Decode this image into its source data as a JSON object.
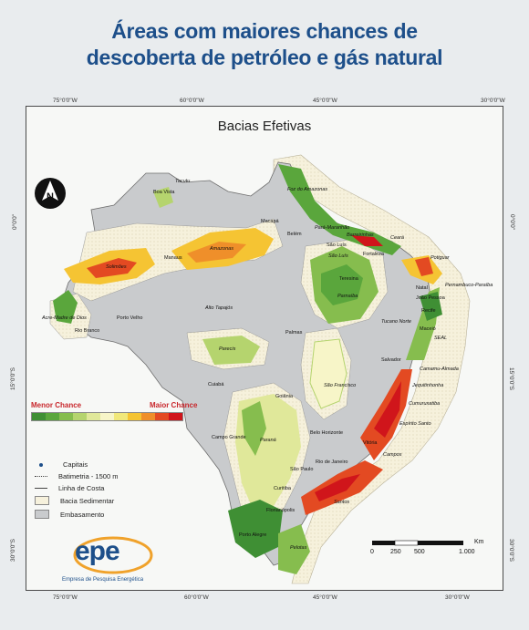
{
  "title_line1": "Áreas com maiores chances de",
  "title_line2": "descoberta de petróleo e gás natural",
  "map_title": "Bacias Efetivas",
  "lon_ticks": [
    "75°0'0\"W",
    "60°0'0\"W",
    "45°0'0\"W",
    "30°0'0\"W"
  ],
  "lat_ticks": [
    "0°0'0\"",
    "15°0'0\"S",
    "30°0'0\"S"
  ],
  "legend": {
    "low_label": "Menor Chance",
    "high_label": "Maior Chance",
    "colors": [
      "#3f8f34",
      "#5aa63c",
      "#86bd4e",
      "#b5d46e",
      "#e0e89a",
      "#f7f5c8",
      "#f1e87a",
      "#f5c433",
      "#ef8f2a",
      "#e34a22",
      "#d0151b"
    ],
    "items": [
      {
        "label": "Capitais",
        "icon": "capital-dot-icon"
      },
      {
        "label": "Batimetria - 1500 m",
        "icon": "dotted-line-icon"
      },
      {
        "label": "Linha de Costa",
        "icon": "line-icon"
      },
      {
        "label": "Bacia Sedimentar",
        "icon": "hatched-swatch-icon"
      },
      {
        "label": "Embasamento",
        "icon": "gray-swatch-icon"
      }
    ]
  },
  "scale": {
    "unit": "Km",
    "labels": [
      "0",
      "250",
      "500",
      "1.000"
    ]
  },
  "logo": {
    "word": "epe",
    "subtitle": "Empresa de Pesquisa Energética"
  },
  "places": {
    "boa_vista": "Boa Vista",
    "macapa": "Macapá",
    "belem": "Belém",
    "sao_luis": "São Luís",
    "fortaleza": "Fortaleza",
    "manaus": "Manaus",
    "teresina": "Teresina",
    "natal": "Natal",
    "joao_pessoa": "João Pessoa",
    "recife": "Recife",
    "maceio": "Maceió",
    "salvador": "Salvador",
    "porto_velho": "Porto Velho",
    "rio_branco": "Rio Branco",
    "palmas": "Palmas",
    "cuiaba": "Cuiabá",
    "goiania": "Goiânia",
    "campo_grande": "Campo Grande",
    "belo_horizonte": "Belo Horizonte",
    "vitoria": "Vitória",
    "rio_de_janeiro": "Rio de Janeiro",
    "sao_paulo": "São Paulo",
    "curitiba": "Curitiba",
    "florianopolis": "Florianópolis",
    "porto_alegre": "Porto Alegre",
    "solimoes": "Solimões",
    "amazonas": "Amazonas",
    "parnaiba": "Parnaíba",
    "parecis": "Parecis",
    "sao_francisco": "São Francisco",
    "parana": "Paraná",
    "alto_tapajos": "Alto Tapajós",
    "acre": "Acre-Madre de Dios",
    "ceara": "Ceará",
    "potiguar": "Potiguar",
    "pelotas": "Pelotas",
    "santos": "Santos",
    "campos": "Campos",
    "espirito_santo": "Espírito Santo",
    "tucano": "Tucano Norte",
    "seal": "SEAL",
    "pernambuco": "Pernambuco-Paraíba",
    "cumuruxatiba": "Cumuruxatiba",
    "jequitinhonha": "Jequitinhonha",
    "camamu": "Camamu-Almada",
    "barreirinhas": "Barreirinhas",
    "para_maranhao": "Pará-Maranhão",
    "tacutu": "Tacutu",
    "foz": "Foz do Amazonas",
    "sao_luis_basin": "São Luís"
  }
}
